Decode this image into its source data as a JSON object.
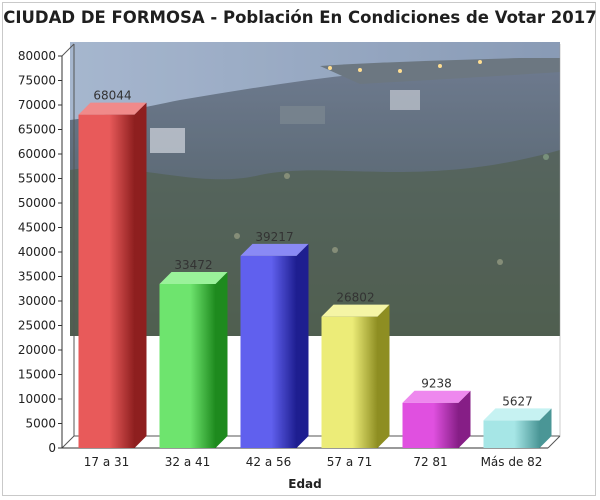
{
  "chart_data": {
    "type": "bar",
    "title": "CIUDAD DE FORMOSA  - Población En Condiciones de Votar 2017",
    "xlabel": "Edad",
    "ylabel": "",
    "categories": [
      "17 a 31",
      "32 a 41",
      "42 a 56",
      "57 a 71",
      "72 81",
      "Más de 82"
    ],
    "values": [
      68044,
      33472,
      39217,
      26802,
      9238,
      5627
    ],
    "ylim": [
      0,
      80000
    ],
    "yticks": [
      "0",
      "5000",
      "10000",
      "15000",
      "20000",
      "25000",
      "30000",
      "35000",
      "40000",
      "45000",
      "50000",
      "55000",
      "60000",
      "65000",
      "70000",
      "75000",
      "80000"
    ],
    "grid": false,
    "legend": "none",
    "bar_style": "3d",
    "colors": [
      {
        "front": "#e85a5a",
        "side": "#8e1f1f",
        "top": "#f08a8a"
      },
      {
        "front": "#6ee46e",
        "side": "#1e8a1e",
        "top": "#9af29a"
      },
      {
        "front": "#6060ee",
        "side": "#1e1e90",
        "top": "#8a8af5"
      },
      {
        "front": "#ecec78",
        "side": "#8e8e22",
        "top": "#f5f5a6"
      },
      {
        "front": "#e050e0",
        "side": "#861e86",
        "top": "#ee88ee"
      },
      {
        "front": "#a6e6e6",
        "side": "#4a9696",
        "top": "#c6f2f2"
      }
    ],
    "background": "photo of city at night (Formosa riverfront)"
  }
}
